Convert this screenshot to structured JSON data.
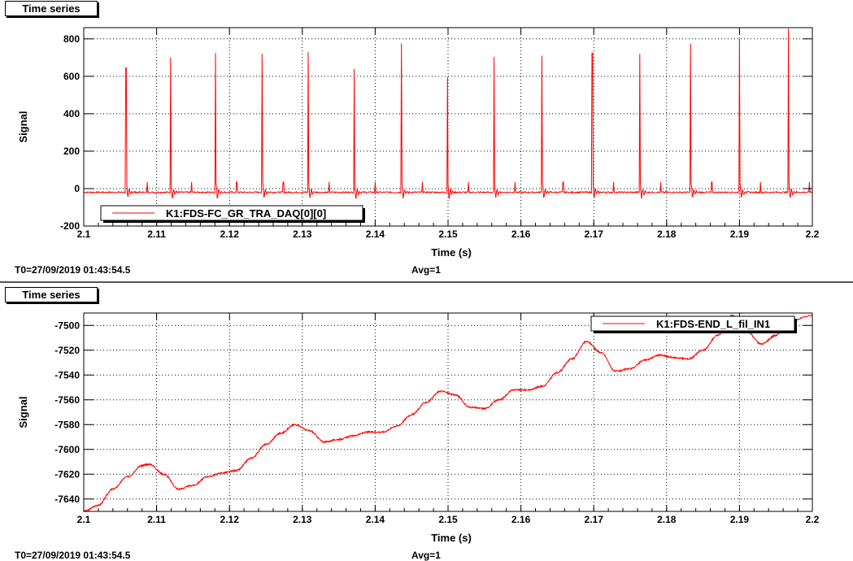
{
  "panels": [
    {
      "tab_label": "Time series",
      "footer_left": "T0=27/09/2019 01:43:54.5",
      "footer_right": "Avg=1"
    },
    {
      "tab_label": "Time series",
      "footer_left": "T0=27/09/2019 01:43:54.5",
      "footer_right": "Avg=1"
    }
  ],
  "colors": {
    "trace": "#ff0000",
    "grid": "#000000",
    "frame": "#000000"
  },
  "chart_data": [
    {
      "type": "line",
      "xlabel": "Time (s)",
      "ylabel": "Signal",
      "xlim": [
        2.1,
        2.2
      ],
      "ylim": [
        -200,
        860
      ],
      "xticks": [
        "2.1",
        "2.11",
        "2.12",
        "2.13",
        "2.14",
        "2.15",
        "2.16",
        "2.17",
        "2.18",
        "2.19",
        "2.2"
      ],
      "yticks": [
        "-200",
        "0",
        "200",
        "400",
        "600",
        "800"
      ],
      "grid": true,
      "legend_position": "bottom-left",
      "series": [
        {
          "name": "K1:FDS-FC_GR_TRA_DAQ[0][0]",
          "baseline": -20,
          "peaks": [
            {
              "x": 2.1058,
              "y": 645
            },
            {
              "x": 2.1119,
              "y": 700
            },
            {
              "x": 2.1181,
              "y": 725
            },
            {
              "x": 2.1245,
              "y": 720
            },
            {
              "x": 2.1308,
              "y": 730
            },
            {
              "x": 2.1371,
              "y": 640
            },
            {
              "x": 2.1436,
              "y": 775
            },
            {
              "x": 2.1499,
              "y": 595
            },
            {
              "x": 2.1563,
              "y": 705
            },
            {
              "x": 2.1629,
              "y": 710
            },
            {
              "x": 2.1698,
              "y": 725
            },
            {
              "x": 2.1763,
              "y": 720
            },
            {
              "x": 2.1833,
              "y": 775
            },
            {
              "x": 2.19,
              "y": 800
            },
            {
              "x": 2.1967,
              "y": 855
            }
          ]
        }
      ]
    },
    {
      "type": "line",
      "xlabel": "Time (s)",
      "ylabel": "Signal",
      "xlim": [
        2.1,
        2.2
      ],
      "ylim": [
        -7650,
        -7490
      ],
      "xticks": [
        "2.1",
        "2.11",
        "2.12",
        "2.13",
        "2.14",
        "2.15",
        "2.16",
        "2.17",
        "2.18",
        "2.19",
        "2.2"
      ],
      "yticks": [
        "-7500",
        "-7520",
        "-7540",
        "-7560",
        "-7580",
        "-7600",
        "-7620",
        "-7640"
      ],
      "grid": true,
      "legend_position": "top-right",
      "series": [
        {
          "name": "K1:FDS-END_L_fil_IN1",
          "x": [
            2.1,
            2.102,
            2.104,
            2.106,
            2.108,
            2.109,
            2.111,
            2.113,
            2.115,
            2.117,
            2.119,
            2.121,
            2.123,
            2.125,
            2.127,
            2.129,
            2.131,
            2.133,
            2.135,
            2.137,
            2.139,
            2.141,
            2.143,
            2.145,
            2.147,
            2.149,
            2.151,
            2.153,
            2.155,
            2.157,
            2.159,
            2.161,
            2.163,
            2.165,
            2.167,
            2.169,
            2.171,
            2.173,
            2.175,
            2.177,
            2.179,
            2.181,
            2.183,
            2.185,
            2.187,
            2.189,
            2.191,
            2.193,
            2.195,
            2.197,
            2.2
          ],
          "y": [
            -7650,
            -7645,
            -7632,
            -7622,
            -7613,
            -7612,
            -7620,
            -7632,
            -7629,
            -7622,
            -7619,
            -7617,
            -7607,
            -7596,
            -7587,
            -7580,
            -7585,
            -7594,
            -7592,
            -7589,
            -7586,
            -7586,
            -7581,
            -7572,
            -7562,
            -7553,
            -7556,
            -7566,
            -7567,
            -7560,
            -7552,
            -7552,
            -7549,
            -7538,
            -7527,
            -7513,
            -7522,
            -7537,
            -7535,
            -7528,
            -7524,
            -7526,
            -7527,
            -7520,
            -7508,
            -7492,
            -7505,
            -7515,
            -7508,
            -7496,
            -7492
          ]
        }
      ]
    }
  ]
}
